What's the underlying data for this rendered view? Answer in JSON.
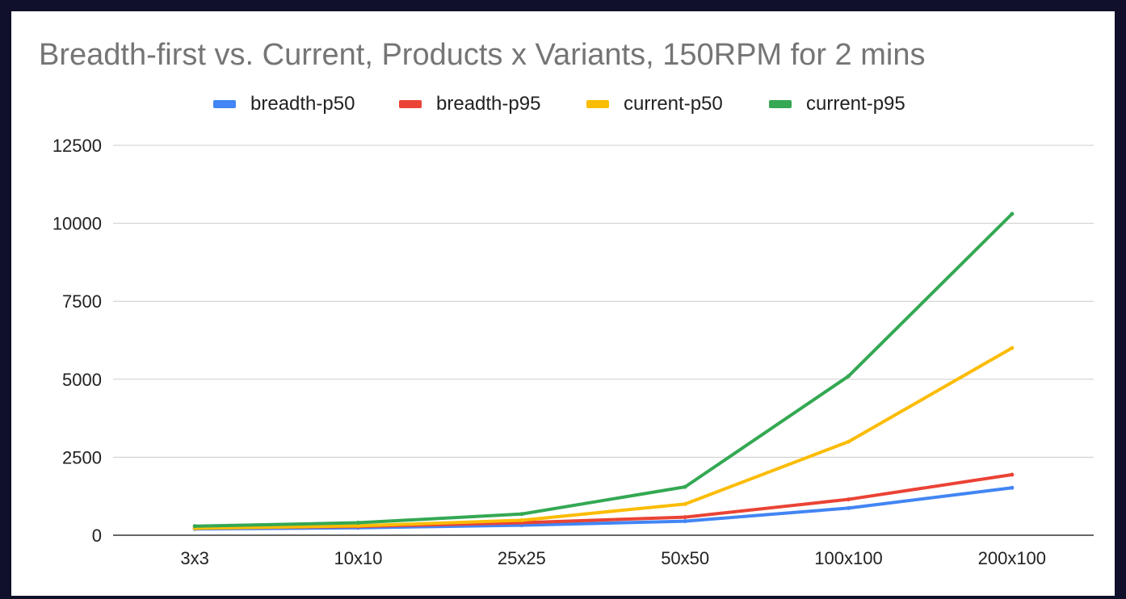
{
  "chart_data": {
    "type": "line",
    "title": "Breadth-first vs. Current, Products x Variants, 150RPM for 2 mins",
    "xlabel": "",
    "ylabel": "",
    "categories": [
      "3x3",
      "10x10",
      "25x25",
      "50x50",
      "100x100",
      "200x100"
    ],
    "ylim": [
      0,
      12500
    ],
    "yticks": [
      0,
      2500,
      5000,
      7500,
      10000,
      12500
    ],
    "grid": true,
    "legend_position": "top",
    "series": [
      {
        "name": "breadth-p50",
        "color": "#4285f4",
        "values": [
          200,
          240,
          320,
          450,
          870,
          1520
        ]
      },
      {
        "name": "breadth-p95",
        "color": "#ea4335",
        "values": [
          230,
          280,
          400,
          580,
          1150,
          1940
        ]
      },
      {
        "name": "current-p50",
        "color": "#fbbc04",
        "values": [
          220,
          300,
          480,
          1000,
          3000,
          6000
        ]
      },
      {
        "name": "current-p95",
        "color": "#34a853",
        "values": [
          290,
          400,
          680,
          1550,
          5100,
          10300
        ]
      }
    ]
  }
}
